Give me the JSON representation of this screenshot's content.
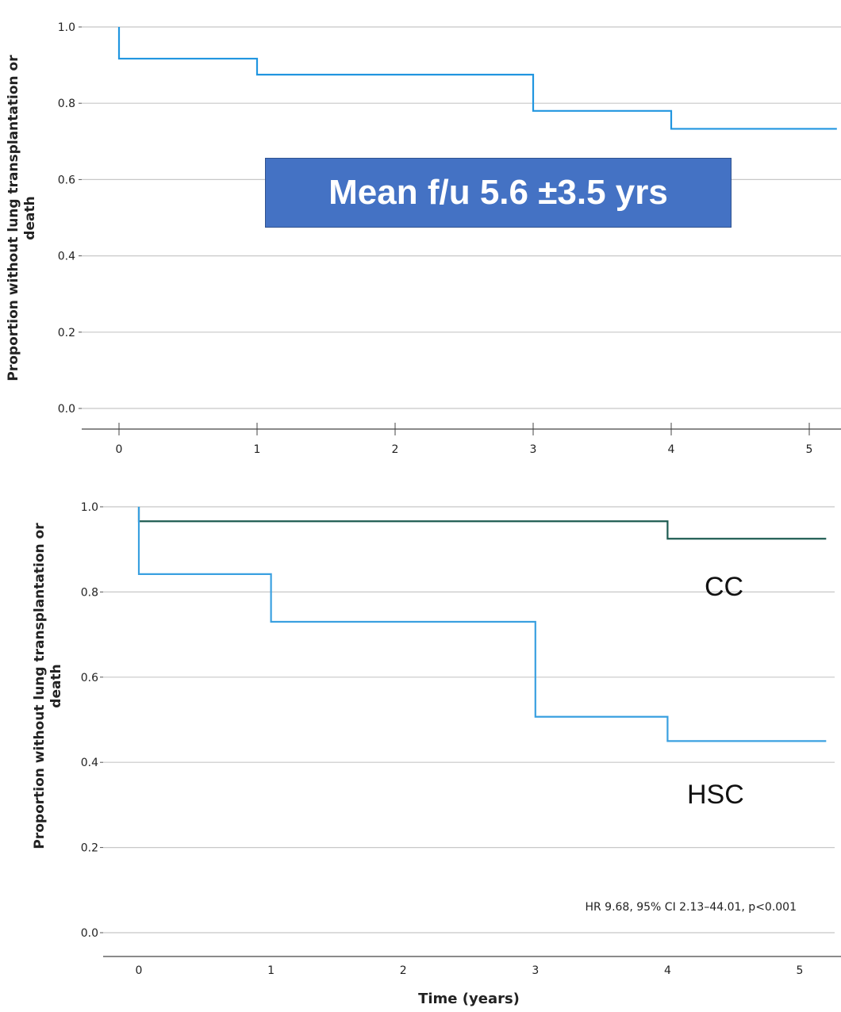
{
  "chart_data": [
    {
      "type": "line",
      "step": true,
      "ylabel": [
        "Proportion without lung transplantation or",
        "death"
      ],
      "xlabel": "",
      "ylim": [
        0,
        1
      ],
      "yticks": [
        "0.0",
        "0.2",
        "0.4",
        "0.6",
        "0.8",
        "1.0"
      ],
      "xlim": [
        0,
        5.2
      ],
      "xticks": [
        "0",
        "1",
        "2",
        "3",
        "4",
        "5"
      ],
      "grid": true,
      "annotation": "Mean f/u 5.6 ±3.5 yrs",
      "series": [
        {
          "color": "#2196e0",
          "x": [
            0,
            0,
            1,
            3,
            4,
            5.2
          ],
          "y": [
            1.0,
            0.917,
            0.875,
            0.78,
            0.733,
            0.733
          ]
        }
      ]
    },
    {
      "type": "line",
      "step": true,
      "ylabel": [
        "Proportion without lung transplantation or",
        "death"
      ],
      "xlabel": "Time (years)",
      "ylim": [
        0,
        1
      ],
      "yticks": [
        "0.0",
        "0.2",
        "0.4",
        "0.6",
        "0.8",
        "1.0"
      ],
      "xlim": [
        0,
        5.2
      ],
      "xticks": [
        "0",
        "1",
        "2",
        "3",
        "4",
        "5"
      ],
      "grid": true,
      "annotation": "HR 9.68, 95% CI 2.13–44.01, p<0.001",
      "series": [
        {
          "name": "CC",
          "color": "#1e5c52",
          "x": [
            0,
            0,
            4,
            5.2
          ],
          "y": [
            1.0,
            0.966,
            0.925,
            0.925
          ]
        },
        {
          "name": "HSC",
          "color": "#3aa0e0",
          "x": [
            0,
            0,
            1,
            3,
            4,
            5.2
          ],
          "y": [
            1.0,
            0.842,
            0.73,
            0.507,
            0.45,
            0.45
          ]
        }
      ]
    }
  ]
}
